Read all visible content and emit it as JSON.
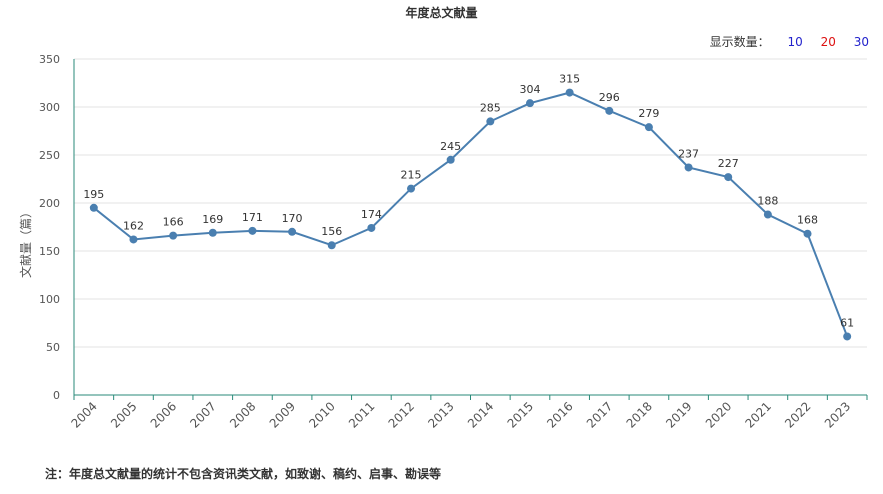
{
  "chart_data": {
    "type": "line",
    "title": "年度总文献量",
    "ylabel": "文献量（篇）",
    "xlabel": "",
    "categories": [
      "2004",
      "2005",
      "2006",
      "2007",
      "2008",
      "2009",
      "2010",
      "2011",
      "2012",
      "2013",
      "2014",
      "2015",
      "2016",
      "2017",
      "2018",
      "2019",
      "2020",
      "2021",
      "2022",
      "2023"
    ],
    "series": [
      {
        "values": [
          195,
          162,
          166,
          169,
          171,
          170,
          156,
          174,
          215,
          245,
          285,
          304,
          315,
          296,
          279,
          237,
          227,
          188,
          168,
          61
        ]
      }
    ],
    "ylim": [
      0,
      350
    ],
    "yticks": [
      "0",
      "50",
      "100",
      "150",
      "200",
      "250",
      "300",
      "350"
    ],
    "grid": true,
    "colors": {
      "line": "#4a7fb0",
      "axis": "#2a8a7a",
      "grid": "#e3e3e3"
    }
  },
  "display_count": {
    "label": "显示数量：",
    "options": [
      {
        "text": "10",
        "color": "#2222cc"
      },
      {
        "text": "20",
        "color": "#dd1111"
      },
      {
        "text": "30",
        "color": "#2222cc"
      }
    ]
  },
  "footnote": "注：年度总文献量的统计不包含资讯类文献，如致谢、稿约、启事、勘误等"
}
